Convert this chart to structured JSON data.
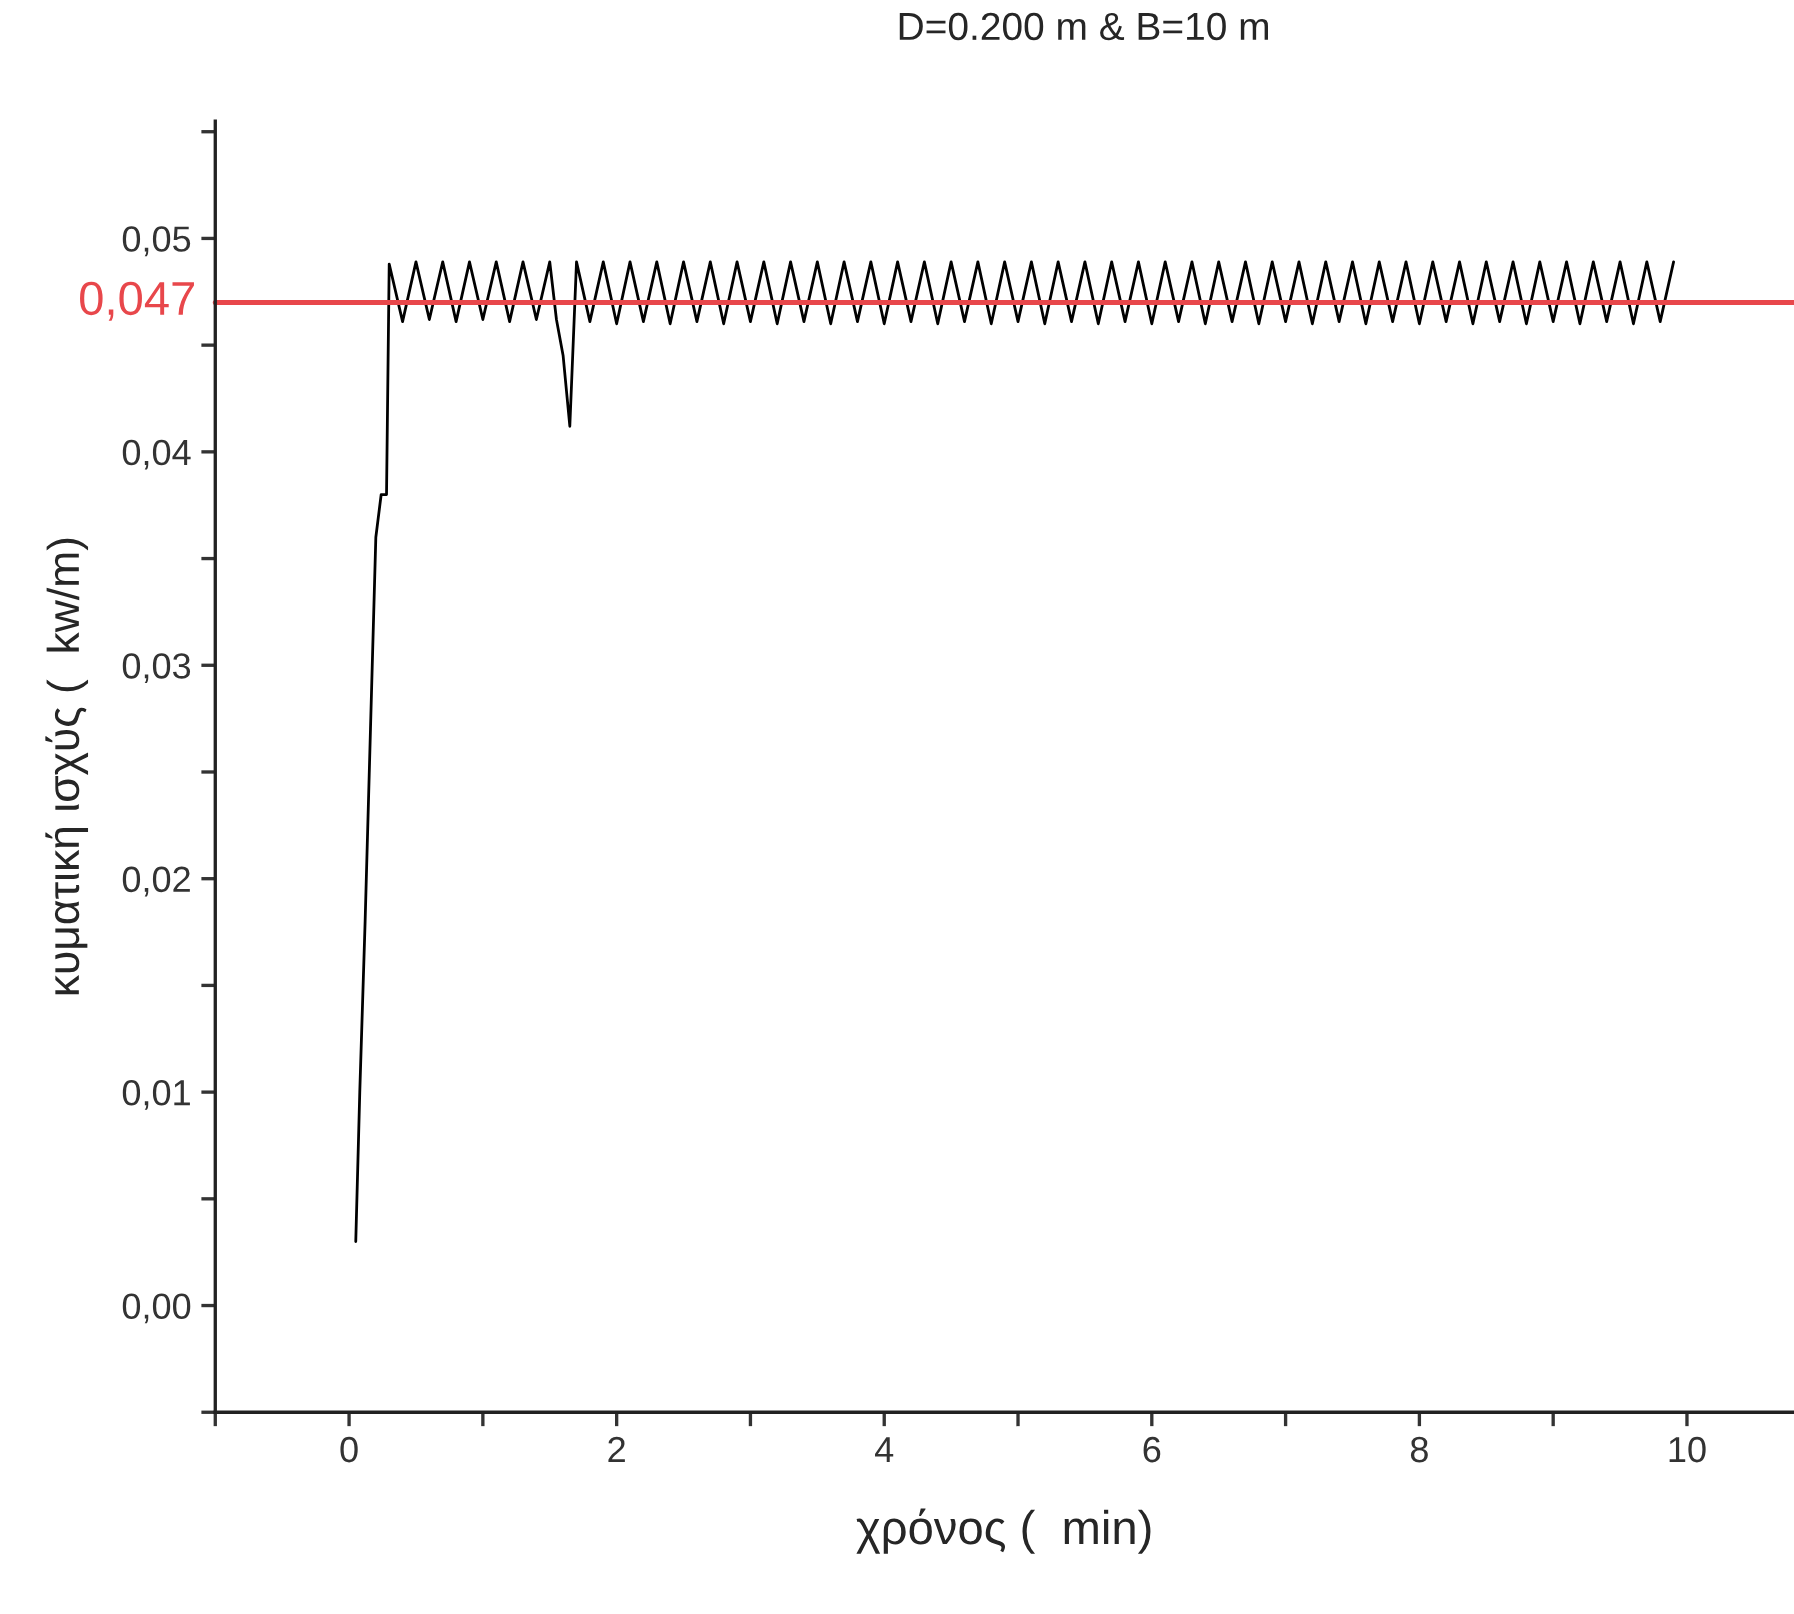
{
  "chart_data": {
    "type": "line",
    "title": "D=0.200 m & B=10 m",
    "xlabel": "χρόνος (  min)",
    "ylabel": "κυματική ισχύς (  kw/m)",
    "xlim": [
      -1,
      10.8
    ],
    "ylim": [
      -0.005,
      0.0555
    ],
    "xticks": [
      {
        "value": -1,
        "label": null
      },
      {
        "value": 0,
        "label": "0"
      },
      {
        "value": 1,
        "label": null
      },
      {
        "value": 2,
        "label": "2"
      },
      {
        "value": 3,
        "label": null
      },
      {
        "value": 4,
        "label": "4"
      },
      {
        "value": 5,
        "label": null
      },
      {
        "value": 6,
        "label": "6"
      },
      {
        "value": 7,
        "label": null
      },
      {
        "value": 8,
        "label": "8"
      },
      {
        "value": 9,
        "label": null
      },
      {
        "value": 10,
        "label": "10"
      }
    ],
    "yticks": [
      {
        "value": -0.005,
        "label": null
      },
      {
        "value": 0.0,
        "label": "0,00"
      },
      {
        "value": 0.005,
        "label": null
      },
      {
        "value": 0.01,
        "label": "0,01"
      },
      {
        "value": 0.015,
        "label": null
      },
      {
        "value": 0.02,
        "label": "0,02"
      },
      {
        "value": 0.025,
        "label": null
      },
      {
        "value": 0.03,
        "label": "0,03"
      },
      {
        "value": 0.035,
        "label": null
      },
      {
        "value": 0.04,
        "label": "0,04"
      },
      {
        "value": 0.045,
        "label": null
      },
      {
        "value": 0.05,
        "label": "0,05"
      },
      {
        "value": 0.055,
        "label": null
      }
    ],
    "grid": false,
    "legend": false,
    "marker": "none",
    "line_style": "solid",
    "ref_lines": [
      {
        "axis": "y",
        "value": 0.047,
        "label": "0,047",
        "color": "#e8474b",
        "line_style": "solid"
      }
    ],
    "series": [
      {
        "color": "#000000",
        "x": [
          0.05,
          0.08,
          0.12,
          0.16,
          0.2,
          0.24,
          0.28,
          0.3,
          0.4,
          0.5,
          0.6,
          0.7,
          0.8,
          0.9,
          1.0,
          1.1,
          1.2,
          1.3,
          1.4,
          1.5,
          1.55,
          1.6,
          1.65,
          1.7,
          1.8,
          1.9,
          2.0,
          2.1,
          2.2,
          2.3,
          2.4,
          2.5,
          2.6,
          2.7,
          2.8,
          2.9,
          3.0,
          3.1,
          3.2,
          3.3,
          3.4,
          3.5,
          3.6,
          3.7,
          3.8,
          3.9,
          4.0,
          4.1,
          4.2,
          4.3,
          4.4,
          4.5,
          4.6,
          4.7,
          4.8,
          4.9,
          5.0,
          5.1,
          5.2,
          5.3,
          5.4,
          5.5,
          5.6,
          5.7,
          5.8,
          5.9,
          6.0,
          6.1,
          6.2,
          6.3,
          6.4,
          6.5,
          6.6,
          6.7,
          6.8,
          6.9,
          7.0,
          7.1,
          7.2,
          7.3,
          7.4,
          7.5,
          7.6,
          7.7,
          7.8,
          7.9,
          8.0,
          8.1,
          8.2,
          8.3,
          8.4,
          8.5,
          8.6,
          8.7,
          8.8,
          8.9,
          9.0,
          9.1,
          9.2,
          9.3,
          9.4,
          9.5,
          9.6,
          9.7,
          9.8,
          9.9
        ],
        "values": [
          0.003,
          0.01,
          0.018,
          0.027,
          0.036,
          0.038,
          0.038,
          0.0488,
          0.0461,
          0.0489,
          0.0462,
          0.0489,
          0.0461,
          0.0489,
          0.0462,
          0.0489,
          0.0461,
          0.0489,
          0.0462,
          0.0489,
          0.0462,
          0.0445,
          0.0412,
          0.0489,
          0.0461,
          0.0489,
          0.046,
          0.0489,
          0.0461,
          0.0489,
          0.046,
          0.0489,
          0.0461,
          0.0489,
          0.046,
          0.0489,
          0.0461,
          0.0489,
          0.046,
          0.0489,
          0.0461,
          0.0489,
          0.046,
          0.0489,
          0.0461,
          0.0489,
          0.046,
          0.0489,
          0.0461,
          0.0489,
          0.046,
          0.0489,
          0.0461,
          0.0489,
          0.046,
          0.0489,
          0.0461,
          0.0489,
          0.046,
          0.0489,
          0.0461,
          0.0489,
          0.046,
          0.0489,
          0.0461,
          0.0489,
          0.046,
          0.0489,
          0.0461,
          0.0489,
          0.046,
          0.0489,
          0.0461,
          0.0489,
          0.046,
          0.0489,
          0.0461,
          0.0489,
          0.046,
          0.0489,
          0.0461,
          0.0489,
          0.046,
          0.0489,
          0.0461,
          0.0489,
          0.046,
          0.0489,
          0.0461,
          0.0489,
          0.046,
          0.0489,
          0.0461,
          0.0489,
          0.046,
          0.0489,
          0.0461,
          0.0489,
          0.046,
          0.0489,
          0.0461,
          0.0489,
          0.046,
          0.0489,
          0.0461,
          0.0489
        ]
      }
    ]
  }
}
